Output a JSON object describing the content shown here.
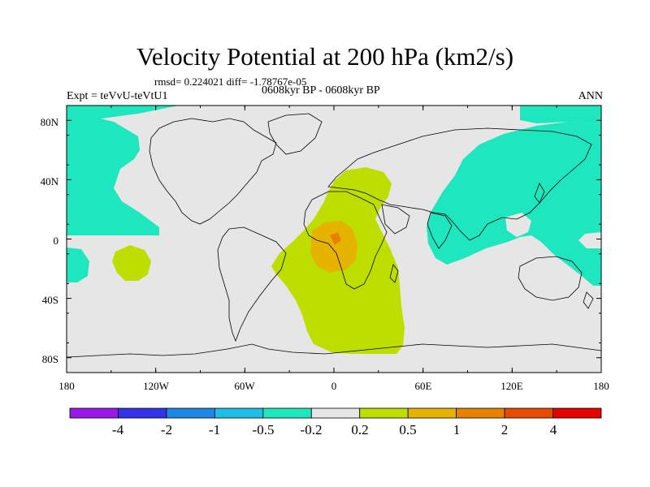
{
  "title": "Velocity Potential at 200 hPa (km2/s)",
  "stats": "rmsd= 0.224021 diff= -1.78767e-05",
  "period": "0608kyr BP - 0608kyr BP",
  "experiment": "Expt = teVvU-teVtU1",
  "season": "ANN",
  "lat_labels": [
    "80N",
    "40N",
    "0",
    "40S",
    "80S"
  ],
  "lon_labels": [
    "180",
    "120W",
    "60W",
    "0",
    "60E",
    "120E",
    "180"
  ],
  "colorbar": {
    "labels": [
      "-4",
      "-2",
      "-1",
      "-0.5",
      "-0.2",
      "0.2",
      "0.5",
      "1",
      "2",
      "4"
    ],
    "colors": [
      "#9a19e6",
      "#3232e6",
      "#1e87e6",
      "#1ebee6",
      "#1ee6be",
      "#e6e6e6",
      "#bede00",
      "#e6b400",
      "#e68200",
      "#e64b00",
      "#e60000"
    ]
  },
  "map_colors": {
    "neutral": "#e6e6e6",
    "negative_weak": "#1ee6be",
    "positive_weak": "#bede00",
    "positive_mid": "#e6b400",
    "positive_strong": "#e68200"
  }
}
